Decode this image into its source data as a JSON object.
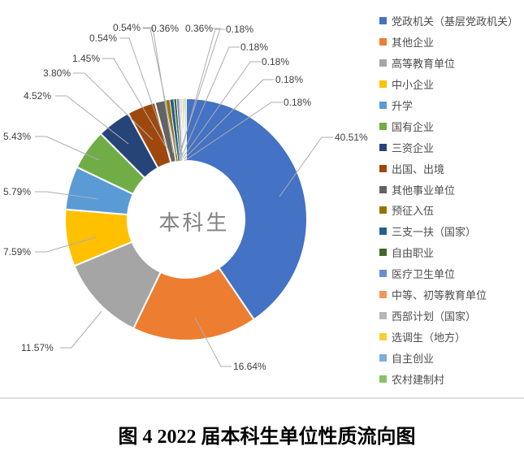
{
  "chart_data": {
    "type": "pie",
    "donut": true,
    "center_label": "本科生",
    "legend_position": "right",
    "label_format": "percent_two_decimals",
    "categories": [
      "党政机关（基层党政机关）",
      "其他企业",
      "高等教育单位",
      "中小企业",
      "升学",
      "国有企业",
      "三资企业",
      "出国、出境",
      "其他事业单位",
      "预征入伍",
      "三支一扶（国家）",
      "自由职业",
      "医疗卫生单位",
      "中等、初等教育单位",
      "西部计划（国家）",
      "选调生（地方）",
      "自主创业",
      "农村建制村"
    ],
    "values": [
      40.51,
      16.64,
      11.57,
      7.59,
      5.79,
      5.43,
      4.52,
      3.8,
      1.45,
      0.54,
      0.54,
      0.36,
      0.36,
      0.18,
      0.18,
      0.18,
      0.18,
      0.18
    ],
    "colors": [
      "#4472C4",
      "#ED7D31",
      "#A5A5A5",
      "#FFC000",
      "#5B9BD5",
      "#70AD47",
      "#264478",
      "#9E480E",
      "#636363",
      "#997300",
      "#255E91",
      "#43682B",
      "#698ED0",
      "#F1975A",
      "#B7B7B7",
      "#FFCD33",
      "#7CAFDD",
      "#8CC168"
    ]
  },
  "caption": "图 4 2022 届本科生单位性质流向图"
}
